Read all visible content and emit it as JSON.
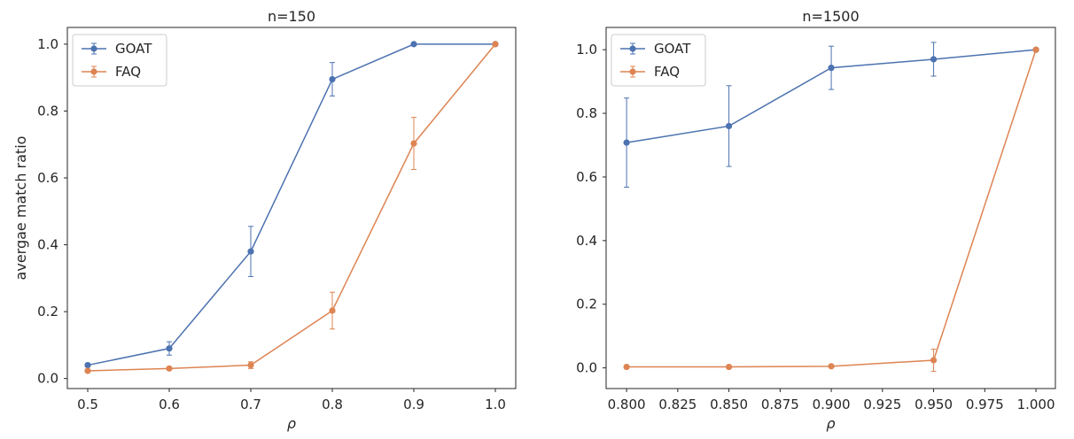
{
  "chart_data": [
    {
      "type": "line",
      "title": "n=150",
      "xlabel": "ρ",
      "ylabel": "avergae match ratio",
      "xlim": [
        0.475,
        1.025
      ],
      "ylim": [
        -0.03,
        1.05
      ],
      "xticks": [
        0.5,
        0.6,
        0.7,
        0.8,
        0.9,
        1.0
      ],
      "xtick_labels": [
        "0.5",
        "0.6",
        "0.7",
        "0.8",
        "0.9",
        "1.0"
      ],
      "yticks": [
        0.0,
        0.2,
        0.4,
        0.6,
        0.8,
        1.0
      ],
      "ytick_labels": [
        "0.0",
        "0.2",
        "0.4",
        "0.6",
        "0.8",
        "1.0"
      ],
      "legend": "top-left",
      "grid": false,
      "x": [
        0.5,
        0.6,
        0.7,
        0.8,
        0.9,
        1.0
      ],
      "series": [
        {
          "name": "GOAT",
          "color": "#4c72b0",
          "values": [
            0.04,
            0.09,
            0.38,
            0.895,
            1.0,
            1.0
          ],
          "errors": [
            0.005,
            0.02,
            0.075,
            0.05,
            0.0,
            0.0
          ]
        },
        {
          "name": "FAQ",
          "color": "#dd8452",
          "values": [
            0.023,
            0.03,
            0.04,
            0.203,
            0.703,
            1.0
          ],
          "errors": [
            0.004,
            0.004,
            0.01,
            0.055,
            0.078,
            0.0
          ]
        }
      ]
    },
    {
      "type": "line",
      "title": "n=1500",
      "xlabel": "ρ",
      "ylabel": "",
      "xlim": [
        0.79,
        1.0095
      ],
      "ylim": [
        -0.065,
        1.07
      ],
      "xticks": [
        0.8,
        0.825,
        0.85,
        0.875,
        0.9,
        0.925,
        0.95,
        0.975,
        1.0
      ],
      "xtick_labels": [
        "0.800",
        "0.825",
        "0.850",
        "0.875",
        "0.900",
        "0.925",
        "0.950",
        "0.975",
        "1.000"
      ],
      "yticks": [
        0.0,
        0.2,
        0.4,
        0.6,
        0.8,
        1.0
      ],
      "ytick_labels": [
        "0.0",
        "0.2",
        "0.4",
        "0.6",
        "0.8",
        "1.0"
      ],
      "legend": "top-left",
      "grid": false,
      "x": [
        0.8,
        0.85,
        0.9,
        0.95,
        1.0
      ],
      "series": [
        {
          "name": "GOAT",
          "color": "#4c72b0",
          "values": [
            0.708,
            0.76,
            0.943,
            0.97,
            1.0
          ],
          "errors": [
            0.14,
            0.127,
            0.068,
            0.053,
            0.0
          ]
        },
        {
          "name": "FAQ",
          "color": "#dd8452",
          "values": [
            0.003,
            0.003,
            0.005,
            0.024,
            1.0
          ],
          "errors": [
            0.001,
            0.001,
            0.002,
            0.035,
            0.0
          ]
        }
      ]
    }
  ]
}
